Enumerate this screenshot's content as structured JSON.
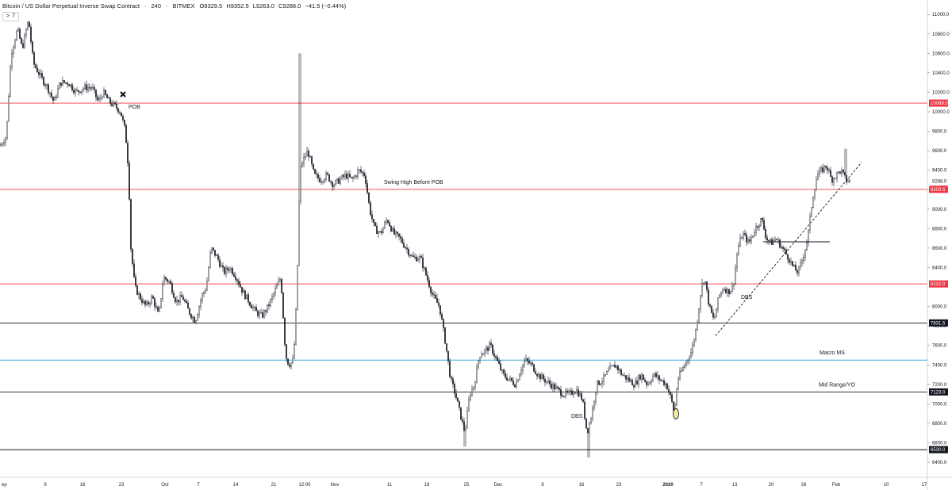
{
  "header": {
    "symbol": "Bitcoin / US Dollar Perpetual Inverse Swap Contract",
    "interval": "240",
    "exchange": "BITMEX",
    "open": "O9329.5",
    "high": "H9352.5",
    "low": "L9263.0",
    "close": "C9288.0",
    "change": "−41.5 (−0.44%)"
  },
  "toolbar": {
    "collapse_icon": "chevron-right-icon",
    "indicator_count": "7"
  },
  "colors": {
    "red_level": "#f23645",
    "black_level": "#131722",
    "blue_level": "#2aa1d6",
    "candle": "#131722",
    "price_tag": "#f23645"
  },
  "chart_data": {
    "type": "candlestick",
    "price_axis": {
      "range": [
        6300,
        11200
      ],
      "ticks": [
        "11000.0",
        "10800.0",
        "10600.0",
        "10400.0",
        "10200.0",
        "10000.0",
        "9800.0",
        "9600.0",
        "9400.0",
        "9200.0",
        "9000.0",
        "8800.0",
        "8600.0",
        "8400.0",
        "8000.0",
        "7800.0",
        "7600.0",
        "7400.0",
        "7200.0",
        "7000.0",
        "6800.0",
        "6600.0",
        "6400.0"
      ],
      "current_price": "9288.0",
      "countdown": "04:55"
    },
    "time_axis": {
      "ticks": [
        "ep",
        "9",
        "16",
        "23",
        "Oct",
        "7",
        "14",
        "21",
        "12:00",
        "Nov",
        "11",
        "18",
        "25",
        "Dec",
        "9",
        "16",
        "23",
        "2020",
        "7",
        "13",
        "20",
        "26",
        "Feb",
        "10",
        "17"
      ]
    },
    "levels": [
      {
        "price": 10089.0,
        "label": "10089.0",
        "color": "red",
        "annotation": ""
      },
      {
        "price": 9203.5,
        "label": "9203.5",
        "color": "red",
        "annotation": "Swing High Before POB"
      },
      {
        "price": 8232.0,
        "label": "8232.0",
        "color": "red",
        "annotation": ""
      },
      {
        "price": 7831.5,
        "label": "7831.5",
        "color": "black",
        "annotation": ""
      },
      {
        "price": 7450.0,
        "label": "",
        "color": "blue",
        "annotation": "Macro MS"
      },
      {
        "price": 7123.0,
        "label": "7123.0",
        "color": "black",
        "annotation": "Mid Range/YO"
      },
      {
        "price": 6530.0,
        "label": "6530.0",
        "color": "black",
        "annotation": ""
      }
    ],
    "annotations": [
      "POB",
      "DBS",
      "DBS"
    ],
    "trendline": {
      "start_price": 7700,
      "end_price": 9480,
      "style": "dashed"
    },
    "price_path": [
      [
        0,
        9650
      ],
      [
        8,
        9750
      ],
      [
        14,
        10600
      ],
      [
        22,
        10850
      ],
      [
        28,
        10650
      ],
      [
        36,
        10950
      ],
      [
        42,
        10500
      ],
      [
        52,
        10350
      ],
      [
        60,
        10250
      ],
      [
        68,
        10100
      ],
      [
        76,
        10300
      ],
      [
        86,
        10300
      ],
      [
        96,
        10200
      ],
      [
        106,
        10250
      ],
      [
        116,
        10250
      ],
      [
        124,
        10100
      ],
      [
        130,
        10200
      ],
      [
        138,
        10100
      ],
      [
        146,
        10050
      ],
      [
        152,
        10000
      ],
      [
        158,
        9800
      ],
      [
        162,
        9400
      ],
      [
        165,
        8600
      ],
      [
        170,
        8200
      ],
      [
        176,
        8100
      ],
      [
        184,
        8000
      ],
      [
        192,
        8100
      ],
      [
        200,
        7900
      ],
      [
        206,
        8300
      ],
      [
        214,
        8250
      ],
      [
        222,
        8050
      ],
      [
        230,
        8100
      ],
      [
        238,
        7950
      ],
      [
        246,
        7850
      ],
      [
        254,
        8100
      ],
      [
        260,
        8200
      ],
      [
        266,
        8600
      ],
      [
        274,
        8500
      ],
      [
        282,
        8350
      ],
      [
        290,
        8400
      ],
      [
        298,
        8300
      ],
      [
        306,
        8150
      ],
      [
        314,
        8050
      ],
      [
        322,
        7950
      ],
      [
        330,
        7900
      ],
      [
        338,
        8000
      ],
      [
        346,
        8150
      ],
      [
        354,
        8300
      ],
      [
        360,
        7500
      ],
      [
        364,
        7400
      ],
      [
        370,
        7450
      ],
      [
        374,
        8100
      ],
      [
        378,
        9400
      ],
      [
        382,
        9500
      ],
      [
        388,
        9600
      ],
      [
        396,
        9350
      ],
      [
        404,
        9300
      ],
      [
        412,
        9350
      ],
      [
        420,
        9250
      ],
      [
        428,
        9300
      ],
      [
        436,
        9350
      ],
      [
        444,
        9300
      ],
      [
        452,
        9400
      ],
      [
        460,
        9350
      ],
      [
        466,
        9000
      ],
      [
        472,
        8800
      ],
      [
        480,
        8750
      ],
      [
        488,
        8900
      ],
      [
        496,
        8750
      ],
      [
        504,
        8700
      ],
      [
        512,
        8600
      ],
      [
        520,
        8500
      ],
      [
        530,
        8500
      ],
      [
        538,
        8300
      ],
      [
        546,
        8100
      ],
      [
        554,
        8000
      ],
      [
        562,
        7600
      ],
      [
        568,
        7250
      ],
      [
        574,
        7100
      ],
      [
        580,
        6900
      ],
      [
        586,
        6700
      ],
      [
        592,
        7100
      ],
      [
        598,
        7200
      ],
      [
        604,
        7500
      ],
      [
        612,
        7550
      ],
      [
        618,
        7600
      ],
      [
        626,
        7450
      ],
      [
        634,
        7300
      ],
      [
        642,
        7250
      ],
      [
        650,
        7200
      ],
      [
        656,
        7350
      ],
      [
        662,
        7450
      ],
      [
        670,
        7400
      ],
      [
        678,
        7300
      ],
      [
        686,
        7250
      ],
      [
        694,
        7200
      ],
      [
        702,
        7150
      ],
      [
        710,
        7100
      ],
      [
        718,
        7100
      ],
      [
        726,
        7150
      ],
      [
        734,
        7050
      ],
      [
        740,
        6700
      ],
      [
        746,
        6900
      ],
      [
        752,
        7200
      ],
      [
        760,
        7250
      ],
      [
        768,
        7350
      ],
      [
        776,
        7400
      ],
      [
        784,
        7300
      ],
      [
        792,
        7250
      ],
      [
        800,
        7200
      ],
      [
        808,
        7300
      ],
      [
        816,
        7200
      ],
      [
        824,
        7300
      ],
      [
        832,
        7250
      ],
      [
        840,
        7200
      ],
      [
        846,
        7050
      ],
      [
        850,
        6900
      ],
      [
        854,
        7250
      ],
      [
        860,
        7350
      ],
      [
        866,
        7450
      ],
      [
        872,
        7550
      ],
      [
        878,
        7800
      ],
      [
        884,
        8200
      ],
      [
        888,
        8300
      ],
      [
        894,
        8000
      ],
      [
        900,
        7850
      ],
      [
        906,
        8100
      ],
      [
        912,
        8200
      ],
      [
        918,
        8150
      ],
      [
        924,
        8200
      ],
      [
        930,
        8600
      ],
      [
        936,
        8750
      ],
      [
        944,
        8650
      ],
      [
        952,
        8800
      ],
      [
        960,
        8900
      ],
      [
        966,
        8700
      ],
      [
        972,
        8650
      ],
      [
        978,
        8700
      ],
      [
        986,
        8600
      ],
      [
        994,
        8500
      ],
      [
        1000,
        8400
      ],
      [
        1006,
        8350
      ],
      [
        1012,
        8500
      ],
      [
        1018,
        8700
      ],
      [
        1024,
        9100
      ],
      [
        1030,
        9350
      ],
      [
        1036,
        9400
      ],
      [
        1042,
        9450
      ],
      [
        1048,
        9300
      ],
      [
        1054,
        9350
      ],
      [
        1060,
        9400
      ],
      [
        1066,
        9300
      ],
      [
        1070,
        9290
      ]
    ]
  }
}
